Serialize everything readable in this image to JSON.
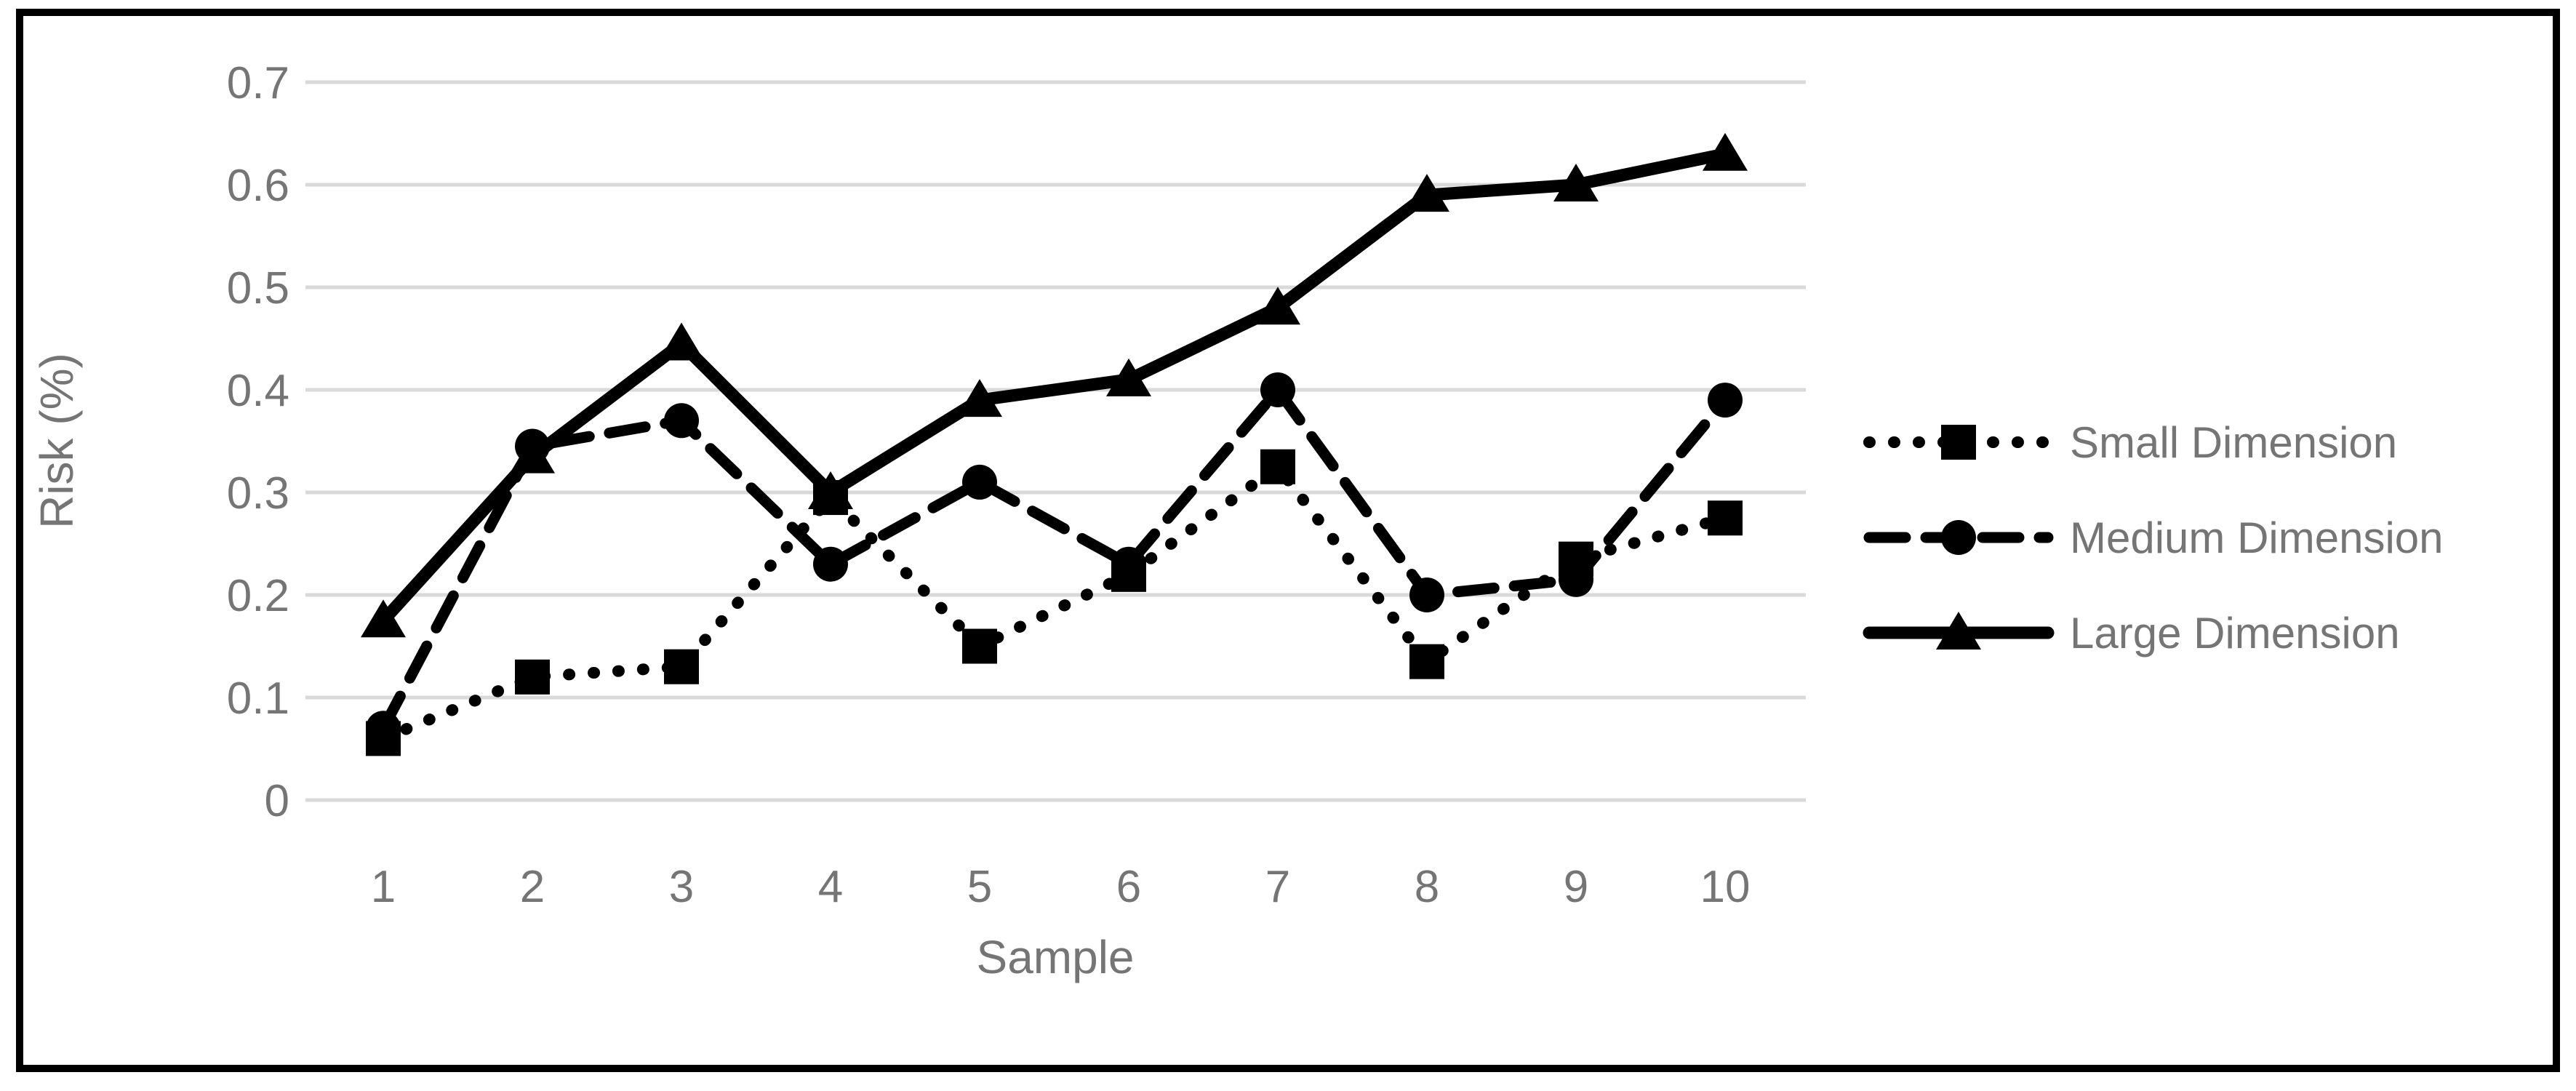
{
  "chart_data": {
    "type": "line",
    "title": "",
    "xlabel": "Sample",
    "ylabel": "Risk (%)",
    "x": [
      1,
      2,
      3,
      4,
      5,
      6,
      7,
      8,
      9,
      10
    ],
    "xtick_labels": [
      "1",
      "2",
      "3",
      "4",
      "5",
      "6",
      "7",
      "8",
      "9",
      "10"
    ],
    "ylim": [
      0,
      0.7
    ],
    "ytick_step": 0.1,
    "ytick_labels": [
      "0",
      "0.1",
      "0.2",
      "0.3",
      "0.4",
      "0.5",
      "0.6",
      "0.7"
    ],
    "grid": "horizontal",
    "legend_position": "right",
    "series": [
      {
        "name": "Small Dimension",
        "line_style": "dotted",
        "marker": "square",
        "color": "#000000",
        "values": [
          0.06,
          0.12,
          0.13,
          0.295,
          0.15,
          0.22,
          0.325,
          0.135,
          0.235,
          0.275
        ]
      },
      {
        "name": "Medium Dimension",
        "line_style": "dashed",
        "marker": "circle",
        "color": "#000000",
        "values": [
          0.07,
          0.345,
          0.37,
          0.23,
          0.31,
          0.23,
          0.4,
          0.2,
          0.215,
          0.39
        ]
      },
      {
        "name": "Large Dimension",
        "line_style": "solid",
        "marker": "triangle",
        "color": "#000000",
        "values": [
          0.175,
          0.335,
          0.445,
          0.3,
          0.39,
          0.41,
          0.48,
          0.59,
          0.6,
          0.63
        ]
      }
    ]
  },
  "colors": {
    "axis_text": "#757575",
    "gridline": "#d9d9d9",
    "series_black": "#000000",
    "frame_border": "#000000",
    "background": "#ffffff"
  }
}
